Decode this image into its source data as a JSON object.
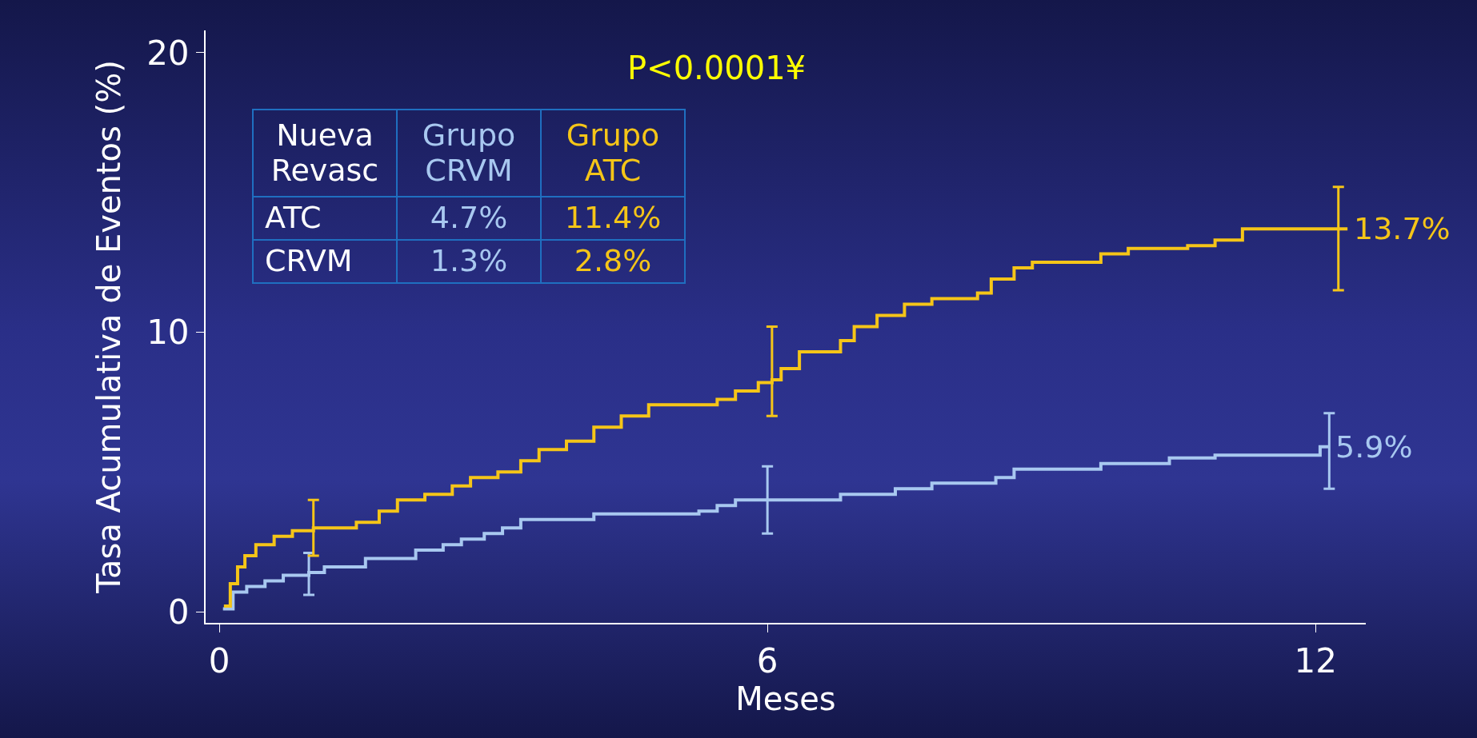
{
  "chart_data": {
    "type": "step",
    "xlabel": "Meses",
    "ylabel": "Tasa Acumulativa de Eventos (%)",
    "xlim": [
      -0.15,
      12.55
    ],
    "ylim": [
      -0.4,
      20.8
    ],
    "xticks": [
      0,
      6,
      12
    ],
    "yticks": [
      0,
      10,
      20
    ],
    "marker": "none",
    "annotations": [
      "P<0.0001¥",
      "Nueva Revasc",
      "Grupo CRVM",
      "Grupo ATC",
      "ATC",
      "4.7%",
      "11.4%",
      "CRVM",
      "1.3%",
      "2.8%"
    ],
    "series": [
      {
        "color": "#a8c8f0",
        "x": [
          0.04,
          0.15,
          0.3,
          0.5,
          0.7,
          0.98,
          1.15,
          1.6,
          2.15,
          2.45,
          2.65,
          2.9,
          3.1,
          3.3,
          4.1,
          5.25,
          5.45,
          5.65,
          6.0,
          6.8,
          7.4,
          7.8,
          8.5,
          8.7,
          9.65,
          10.4,
          10.9,
          12.05,
          12.15
        ],
        "values": [
          0.1,
          0.7,
          0.9,
          1.1,
          1.3,
          1.4,
          1.6,
          1.9,
          2.2,
          2.4,
          2.6,
          2.8,
          3.0,
          3.3,
          3.5,
          3.6,
          3.8,
          4.0,
          4.0,
          4.2,
          4.4,
          4.6,
          4.8,
          5.1,
          5.3,
          5.5,
          5.6,
          5.9,
          5.9
        ],
        "errors": [
          null,
          null,
          null,
          null,
          null,
          [
            0.6,
            2.1
          ],
          null,
          null,
          null,
          null,
          null,
          null,
          null,
          null,
          null,
          null,
          null,
          null,
          [
            2.8,
            5.2
          ],
          null,
          null,
          null,
          null,
          null,
          null,
          null,
          null,
          null,
          [
            4.4,
            7.1
          ]
        ],
        "value_labels": [
          null,
          null,
          null,
          null,
          null,
          null,
          null,
          null,
          null,
          null,
          null,
          null,
          null,
          null,
          null,
          null,
          null,
          null,
          null,
          null,
          null,
          null,
          null,
          null,
          null,
          null,
          null,
          null,
          "5.9%"
        ]
      },
      {
        "color": "#f5c518",
        "x": [
          0.05,
          0.12,
          0.2,
          0.28,
          0.4,
          0.6,
          0.8,
          1.03,
          1.2,
          1.5,
          1.75,
          1.95,
          2.25,
          2.55,
          2.75,
          3.05,
          3.3,
          3.5,
          3.8,
          4.1,
          4.4,
          4.7,
          5.45,
          5.65,
          5.9,
          6.05,
          6.15,
          6.35,
          6.8,
          6.95,
          7.2,
          7.5,
          7.8,
          8.3,
          8.45,
          8.7,
          8.9,
          9.65,
          9.95,
          10.6,
          10.9,
          11.2,
          12.25,
          12.35
        ],
        "values": [
          0.2,
          1.0,
          1.6,
          2.0,
          2.4,
          2.7,
          2.9,
          3.0,
          3.0,
          3.2,
          3.6,
          4.0,
          4.2,
          4.5,
          4.8,
          5.0,
          5.4,
          5.8,
          6.1,
          6.6,
          7.0,
          7.4,
          7.6,
          7.9,
          8.2,
          8.3,
          8.7,
          9.3,
          9.7,
          10.2,
          10.6,
          11.0,
          11.2,
          11.4,
          11.9,
          12.3,
          12.5,
          12.8,
          13.0,
          13.1,
          13.3,
          13.7,
          13.7,
          13.7
        ],
        "errors": [
          null,
          null,
          null,
          null,
          null,
          null,
          null,
          [
            2.0,
            4.0
          ],
          null,
          null,
          null,
          null,
          null,
          null,
          null,
          null,
          null,
          null,
          null,
          null,
          null,
          null,
          null,
          null,
          null,
          [
            7.0,
            10.2
          ],
          null,
          null,
          null,
          null,
          null,
          null,
          null,
          null,
          null,
          null,
          null,
          null,
          null,
          null,
          null,
          null,
          [
            11.5,
            15.2
          ],
          null
        ],
        "value_labels": [
          null,
          null,
          null,
          null,
          null,
          null,
          null,
          null,
          null,
          null,
          null,
          null,
          null,
          null,
          null,
          null,
          null,
          null,
          null,
          null,
          null,
          null,
          null,
          null,
          null,
          null,
          null,
          null,
          null,
          null,
          null,
          null,
          null,
          null,
          null,
          null,
          null,
          null,
          null,
          null,
          null,
          null,
          null,
          "13.7%"
        ]
      }
    ]
  }
}
